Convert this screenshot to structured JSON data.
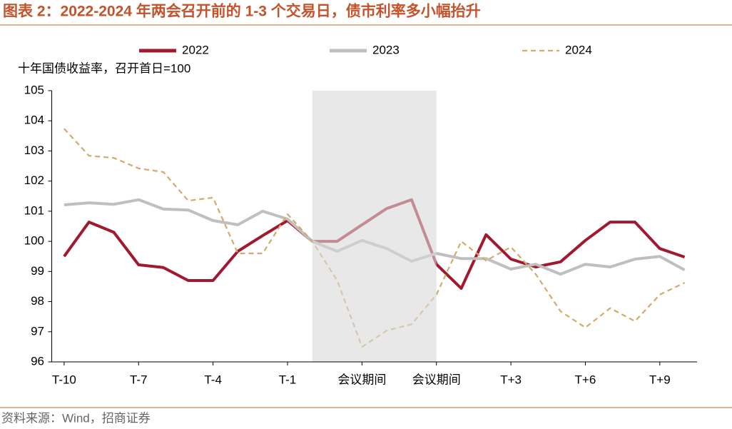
{
  "chart_data": {
    "type": "line",
    "title": "图表 2：2022-2024 年两会召开前的 1-3 个交易日，债市利率多小幅抬升",
    "y_label": "十年国债收益率，召开首日=100",
    "source": "资料来源：Wind，招商证券",
    "categories": [
      "T-10",
      null,
      null,
      "T-7",
      null,
      null,
      "T-4",
      null,
      null,
      "T-1",
      null,
      null,
      "会议期间",
      null,
      null,
      "会议期间",
      null,
      null,
      "T+3",
      null,
      null,
      "T+6",
      null,
      null,
      "T+9",
      null
    ],
    "series": [
      {
        "name": "2022",
        "color": "#a0192f",
        "dash": false,
        "values": [
          99.5,
          100.64,
          100.3,
          99.22,
          99.13,
          98.7,
          98.7,
          99.67,
          100.19,
          100.69,
          100,
          100,
          100.55,
          101.09,
          101.38,
          99.24,
          98.44,
          100.22,
          99.41,
          99.15,
          99.32,
          100.03,
          100.64,
          100.64,
          99.76,
          99.48
        ]
      },
      {
        "name": "2023",
        "color": "#bfbfbf",
        "dash": false,
        "values": [
          101.21,
          101.28,
          101.23,
          101.38,
          101.07,
          101.04,
          100.69,
          100.55,
          101,
          100.74,
          100,
          99.67,
          100.03,
          99.76,
          99.34,
          99.6,
          99.43,
          99.43,
          99.08,
          99.24,
          98.91,
          99.24,
          99.15,
          99.41,
          99.5,
          99.05
        ]
      },
      {
        "name": "2024",
        "color": "#d4aa6a",
        "dash": true,
        "values": [
          103.74,
          102.84,
          102.77,
          102.42,
          102.3,
          101.35,
          101.45,
          99.6,
          99.6,
          100.9,
          100,
          98.7,
          96.5,
          97.04,
          97.25,
          98.23,
          100,
          99.36,
          99.81,
          98.91,
          97.68,
          97.14,
          97.78,
          97.35,
          98.23,
          98.63
        ]
      }
    ],
    "ylim": [
      96,
      105
    ],
    "yticks": [
      96,
      97,
      98,
      99,
      100,
      101,
      102,
      103,
      104,
      105
    ],
    "highlight": {
      "start": 10,
      "end": 15,
      "color": "#d9d9d9"
    },
    "grid": false,
    "legend": "top"
  }
}
